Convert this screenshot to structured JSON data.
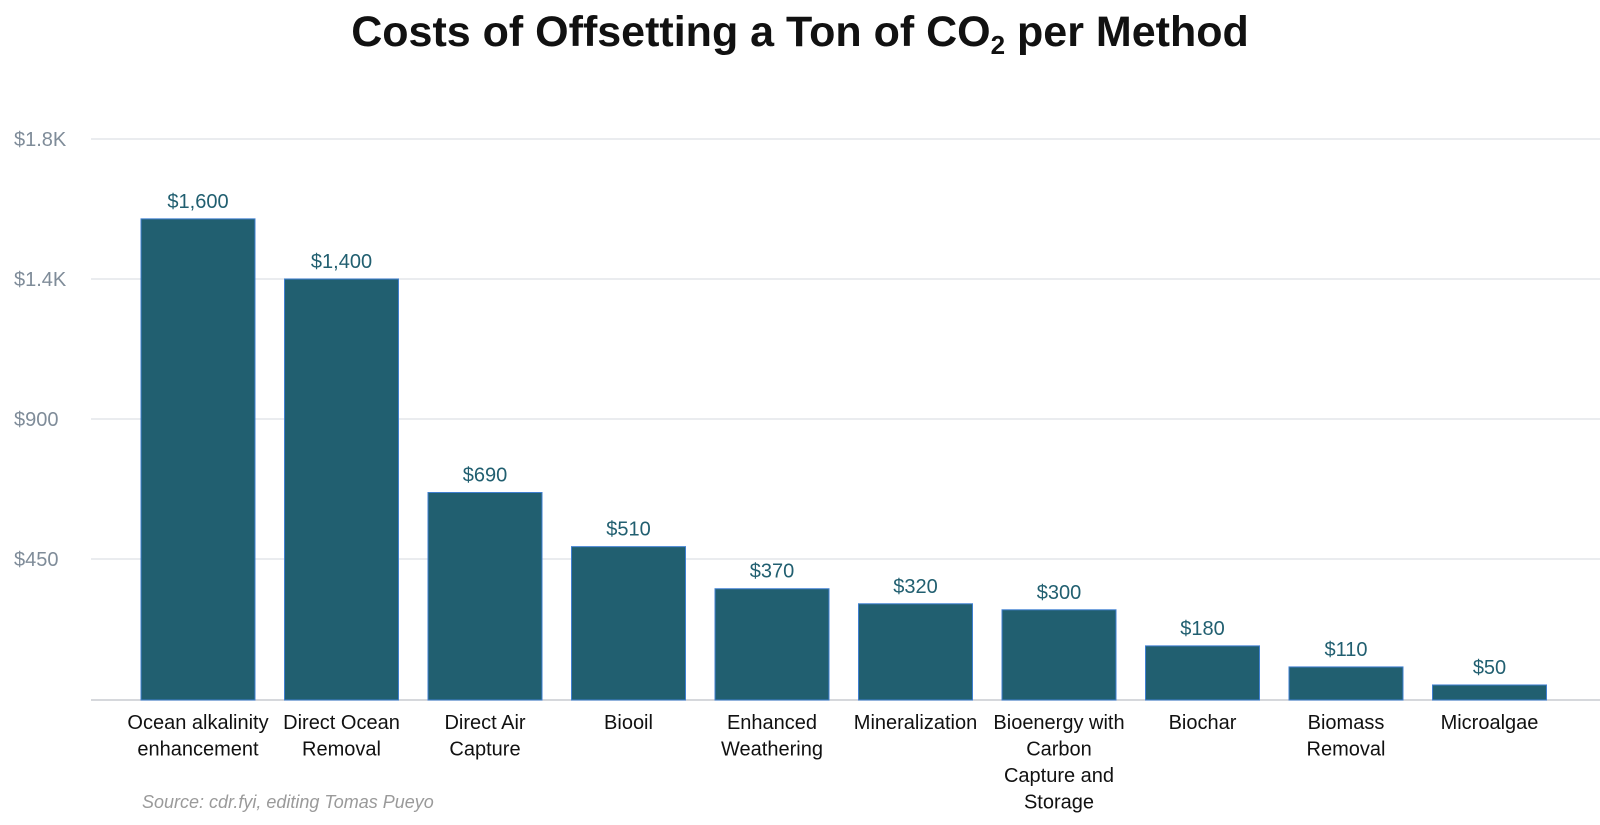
{
  "title": {
    "main": "Costs of Offsetting a Ton of CO",
    "sub": "2",
    "rest": " per Method"
  },
  "source": "Source: cdr.fyi, editing Tomas Pueyo",
  "colors": {
    "bar": "#215f70",
    "bar_edge": "#3f7fd0",
    "value_label": "#215f70",
    "tick_label": "#7f8c99",
    "grid": "#e3e6ea",
    "axis": "#c8ccd0"
  },
  "chart_data": {
    "type": "bar",
    "title": "Costs of Offsetting a Ton of CO2 per Method",
    "xlabel": "",
    "ylabel": "",
    "ylim": [
      0,
      1800
    ],
    "yticks": [
      450,
      900,
      1400,
      1800
    ],
    "ytick_labels": [
      "$450",
      "$900",
      "$1.4K",
      "$1.8K"
    ],
    "grid": true,
    "categories": [
      [
        "Ocean alkalinity",
        "enhancement"
      ],
      [
        "Direct Ocean",
        "Removal"
      ],
      [
        "Direct Air",
        "Capture"
      ],
      [
        "Biooil"
      ],
      [
        "Enhanced",
        "Weathering"
      ],
      [
        "Mineralization"
      ],
      [
        "Bioenergy with",
        "Carbon",
        "Capture and",
        "Storage"
      ],
      [
        "Biochar"
      ],
      [
        "Biomass",
        "Removal"
      ],
      [
        "Microalgae"
      ]
    ],
    "values": [
      1600,
      1400,
      690,
      510,
      370,
      320,
      300,
      180,
      110,
      50
    ],
    "value_labels": [
      "$1,600",
      "$1,400",
      "$690",
      "$510",
      "$370",
      "$320",
      "$300",
      "$180",
      "$110",
      "$50"
    ]
  }
}
